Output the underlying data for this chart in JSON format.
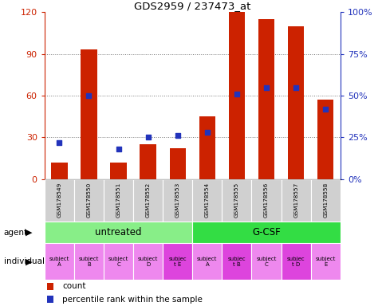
{
  "title": "GDS2959 / 237473_at",
  "samples": [
    "GSM178549",
    "GSM178550",
    "GSM178551",
    "GSM178552",
    "GSM178553",
    "GSM178554",
    "GSM178555",
    "GSM178556",
    "GSM178557",
    "GSM178558"
  ],
  "counts": [
    12,
    93,
    12,
    25,
    22,
    45,
    120,
    115,
    110,
    57
  ],
  "percentile_ranks": [
    22,
    50,
    18,
    25,
    26,
    28,
    51,
    55,
    55,
    42
  ],
  "ylim_left": [
    0,
    120
  ],
  "ylim_right": [
    0,
    100
  ],
  "yticks_left": [
    0,
    30,
    60,
    90,
    120
  ],
  "ytick_labels_left": [
    "0",
    "30",
    "60",
    "90",
    "120"
  ],
  "yticks_right": [
    0,
    25,
    50,
    75,
    100
  ],
  "ytick_labels_right": [
    "0%",
    "25%",
    "50%",
    "75%",
    "100%"
  ],
  "bar_color": "#cc2200",
  "dot_color": "#2233bb",
  "groups": [
    {
      "label": "untreated",
      "start": 0,
      "end": 5,
      "color": "#88ee88"
    },
    {
      "label": "G-CSF",
      "start": 5,
      "end": 10,
      "color": "#33dd44"
    }
  ],
  "individuals": [
    "subject\nA",
    "subject\nB",
    "subject\nC",
    "subject\nD",
    "subjec\nt E",
    "subject\nA",
    "subjec\nt B",
    "subject\nC",
    "subjec\nt D",
    "subject\nE"
  ],
  "individual_highlights": [
    4,
    6,
    8
  ],
  "individual_color_normal": "#ee88ee",
  "individual_color_highlight": "#dd44dd",
  "sample_box_color": "#cccccc",
  "sample_box_alt": "#bbbbbb",
  "agent_label": "agent",
  "individual_label": "individual",
  "legend_count": "count",
  "legend_percentile": "percentile rank within the sample",
  "background_color": "#ffffff"
}
